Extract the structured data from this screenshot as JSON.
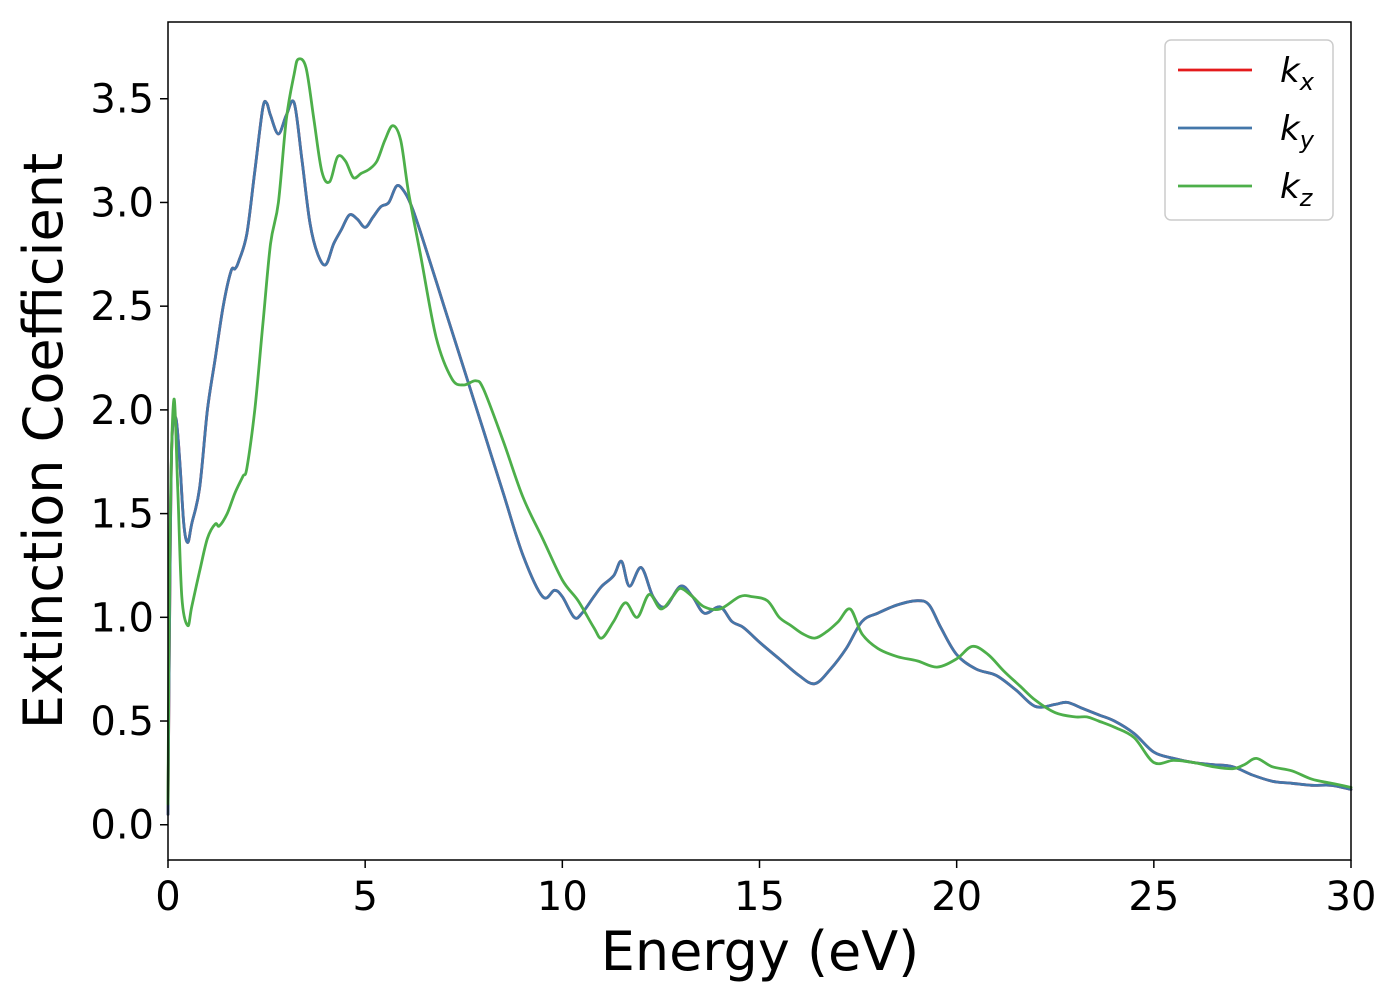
{
  "chart_data": {
    "type": "line",
    "xlabel": "Energy (eV)",
    "ylabel": "Extinction Coefficient",
    "xlim": [
      0,
      30
    ],
    "ylim": [
      -0.17,
      3.87
    ],
    "xticks": [
      "0",
      "5",
      "10",
      "15",
      "20",
      "25",
      "30"
    ],
    "yticks": [
      "0.0",
      "0.5",
      "1.0",
      "1.5",
      "2.0",
      "2.5",
      "3.0",
      "3.5"
    ],
    "grid": false,
    "legend_position": "top-right",
    "series": [
      {
        "name": "k_x",
        "label_base": "k",
        "label_sub": "x",
        "color": "#e41a1c",
        "x": [
          0,
          0.05,
          0.1,
          0.2,
          0.3,
          0.4,
          0.5,
          0.6,
          0.8,
          1.0,
          1.2,
          1.4,
          1.6,
          1.7,
          1.8,
          2.0,
          2.2,
          2.4,
          2.5,
          2.6,
          2.8,
          3.0,
          3.2,
          3.4,
          3.6,
          3.8,
          4.0,
          4.2,
          4.4,
          4.6,
          4.8,
          5.0,
          5.2,
          5.4,
          5.6,
          5.8,
          6.0,
          6.2,
          6.5,
          7.0,
          7.5,
          8.0,
          8.5,
          9.0,
          9.5,
          9.8,
          10.0,
          10.3,
          10.5,
          10.8,
          11.0,
          11.3,
          11.5,
          11.7,
          12.0,
          12.3,
          12.6,
          13.0,
          13.3,
          13.6,
          14.0,
          14.3,
          14.6,
          15.0,
          15.5,
          16.0,
          16.4,
          16.8,
          17.2,
          17.6,
          18.0,
          18.5,
          19.0,
          19.3,
          19.6,
          20.0,
          20.5,
          21.0,
          21.5,
          22.0,
          22.5,
          22.8,
          23.2,
          23.6,
          24.0,
          24.5,
          25.0,
          25.5,
          26.0,
          26.5,
          27.0,
          27.5,
          28.0,
          28.5,
          29.0,
          29.5,
          30.0
        ],
        "y": [
          0.05,
          1.2,
          1.85,
          1.96,
          1.75,
          1.45,
          1.36,
          1.45,
          1.62,
          2.0,
          2.25,
          2.5,
          2.67,
          2.68,
          2.72,
          2.85,
          3.15,
          3.45,
          3.48,
          3.42,
          3.33,
          3.42,
          3.48,
          3.2,
          2.9,
          2.75,
          2.7,
          2.8,
          2.87,
          2.94,
          2.92,
          2.88,
          2.93,
          2.98,
          3.0,
          3.08,
          3.05,
          2.97,
          2.8,
          2.5,
          2.2,
          1.9,
          1.6,
          1.3,
          1.1,
          1.13,
          1.1,
          1.0,
          1.02,
          1.1,
          1.15,
          1.2,
          1.27,
          1.15,
          1.24,
          1.1,
          1.05,
          1.15,
          1.1,
          1.02,
          1.05,
          0.98,
          0.95,
          0.88,
          0.8,
          0.72,
          0.68,
          0.75,
          0.85,
          0.98,
          1.02,
          1.06,
          1.08,
          1.06,
          0.95,
          0.82,
          0.75,
          0.72,
          0.65,
          0.57,
          0.58,
          0.59,
          0.56,
          0.53,
          0.5,
          0.44,
          0.35,
          0.32,
          0.3,
          0.29,
          0.28,
          0.24,
          0.21,
          0.2,
          0.19,
          0.19,
          0.17
        ]
      },
      {
        "name": "k_y",
        "label_base": "k",
        "label_sub": "y",
        "color": "#4477aa",
        "x": [
          0,
          0.05,
          0.1,
          0.2,
          0.3,
          0.4,
          0.5,
          0.6,
          0.8,
          1.0,
          1.2,
          1.4,
          1.6,
          1.7,
          1.8,
          2.0,
          2.2,
          2.4,
          2.5,
          2.6,
          2.8,
          3.0,
          3.2,
          3.4,
          3.6,
          3.8,
          4.0,
          4.2,
          4.4,
          4.6,
          4.8,
          5.0,
          5.2,
          5.4,
          5.6,
          5.8,
          6.0,
          6.2,
          6.5,
          7.0,
          7.5,
          8.0,
          8.5,
          9.0,
          9.5,
          9.8,
          10.0,
          10.3,
          10.5,
          10.8,
          11.0,
          11.3,
          11.5,
          11.7,
          12.0,
          12.3,
          12.6,
          13.0,
          13.3,
          13.6,
          14.0,
          14.3,
          14.6,
          15.0,
          15.5,
          16.0,
          16.4,
          16.8,
          17.2,
          17.6,
          18.0,
          18.5,
          19.0,
          19.3,
          19.6,
          20.0,
          20.5,
          21.0,
          21.5,
          22.0,
          22.5,
          22.8,
          23.2,
          23.6,
          24.0,
          24.5,
          25.0,
          25.5,
          26.0,
          26.5,
          27.0,
          27.5,
          28.0,
          28.5,
          29.0,
          29.5,
          30.0
        ],
        "y": [
          0.05,
          1.2,
          1.85,
          1.96,
          1.75,
          1.45,
          1.36,
          1.45,
          1.62,
          2.0,
          2.25,
          2.5,
          2.67,
          2.68,
          2.72,
          2.85,
          3.15,
          3.45,
          3.48,
          3.42,
          3.33,
          3.42,
          3.48,
          3.2,
          2.9,
          2.75,
          2.7,
          2.8,
          2.87,
          2.94,
          2.92,
          2.88,
          2.93,
          2.98,
          3.0,
          3.08,
          3.05,
          2.97,
          2.8,
          2.5,
          2.2,
          1.9,
          1.6,
          1.3,
          1.1,
          1.13,
          1.1,
          1.0,
          1.02,
          1.1,
          1.15,
          1.2,
          1.27,
          1.15,
          1.24,
          1.1,
          1.05,
          1.15,
          1.1,
          1.02,
          1.05,
          0.98,
          0.95,
          0.88,
          0.8,
          0.72,
          0.68,
          0.75,
          0.85,
          0.98,
          1.02,
          1.06,
          1.08,
          1.06,
          0.95,
          0.82,
          0.75,
          0.72,
          0.65,
          0.57,
          0.58,
          0.59,
          0.56,
          0.53,
          0.5,
          0.44,
          0.35,
          0.32,
          0.3,
          0.29,
          0.28,
          0.24,
          0.21,
          0.2,
          0.19,
          0.19,
          0.17
        ]
      },
      {
        "name": "k_z",
        "label_base": "k",
        "label_sub": "z",
        "color": "#4daf4a",
        "x": [
          0,
          0.05,
          0.15,
          0.25,
          0.35,
          0.5,
          0.6,
          0.8,
          1.0,
          1.2,
          1.3,
          1.5,
          1.7,
          1.9,
          2.0,
          2.2,
          2.4,
          2.6,
          2.8,
          3.0,
          3.2,
          3.3,
          3.5,
          3.7,
          3.9,
          4.1,
          4.3,
          4.5,
          4.7,
          4.9,
          5.1,
          5.3,
          5.5,
          5.7,
          5.9,
          6.1,
          6.4,
          6.8,
          7.2,
          7.5,
          7.8,
          8.0,
          8.5,
          9.0,
          9.5,
          10.0,
          10.4,
          10.8,
          11.0,
          11.3,
          11.6,
          11.9,
          12.2,
          12.5,
          12.8,
          13.0,
          13.3,
          13.6,
          14.0,
          14.5,
          14.8,
          15.2,
          15.5,
          15.8,
          16.1,
          16.4,
          16.7,
          17.0,
          17.3,
          17.6,
          18.0,
          18.5,
          19.0,
          19.5,
          20.0,
          20.4,
          20.8,
          21.2,
          21.6,
          22.0,
          22.5,
          23.0,
          23.3,
          23.6,
          24.0,
          24.5,
          25.0,
          25.5,
          26.0,
          26.5,
          27.0,
          27.3,
          27.6,
          28.0,
          28.5,
          29.0,
          29.5,
          30.0
        ],
        "y": [
          0.1,
          1.4,
          2.05,
          1.6,
          1.1,
          0.96,
          1.05,
          1.22,
          1.38,
          1.45,
          1.44,
          1.5,
          1.6,
          1.68,
          1.72,
          2.0,
          2.4,
          2.8,
          3.0,
          3.4,
          3.62,
          3.69,
          3.65,
          3.4,
          3.15,
          3.1,
          3.22,
          3.2,
          3.12,
          3.14,
          3.16,
          3.2,
          3.3,
          3.37,
          3.3,
          3.05,
          2.75,
          2.35,
          2.15,
          2.12,
          2.14,
          2.1,
          1.85,
          1.58,
          1.38,
          1.18,
          1.08,
          0.95,
          0.9,
          0.98,
          1.07,
          1.0,
          1.11,
          1.04,
          1.1,
          1.14,
          1.1,
          1.05,
          1.04,
          1.1,
          1.1,
          1.08,
          1.0,
          0.96,
          0.92,
          0.9,
          0.93,
          0.98,
          1.04,
          0.92,
          0.85,
          0.81,
          0.79,
          0.76,
          0.8,
          0.86,
          0.82,
          0.74,
          0.67,
          0.6,
          0.54,
          0.52,
          0.52,
          0.5,
          0.47,
          0.42,
          0.3,
          0.31,
          0.3,
          0.28,
          0.27,
          0.29,
          0.32,
          0.28,
          0.26,
          0.22,
          0.2,
          0.18
        ]
      }
    ]
  }
}
